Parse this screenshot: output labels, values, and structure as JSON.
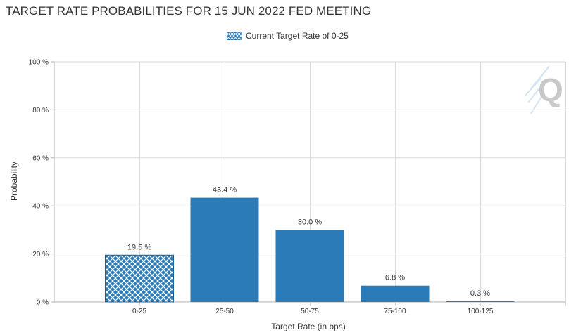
{
  "title": "TARGET RATE PROBABILITIES FOR 15 JUN 2022 FED MEETING",
  "legend": {
    "label": "Current Target Rate of 0-25"
  },
  "colors": {
    "bar": "#2b7bb9",
    "hatch_bg": "#2b7bb9",
    "hatch_line": "#ffffff",
    "grid": "#d9d9d9",
    "axis": "#b3b3b3"
  },
  "chart_data": {
    "type": "bar",
    "title": "TARGET RATE PROBABILITIES FOR 15 JUN 2022 FED MEETING",
    "xlabel": "Target Rate (in bps)",
    "ylabel": "Probability",
    "ylim": [
      0,
      100
    ],
    "yticks": [
      0,
      20,
      40,
      60,
      80,
      100
    ],
    "ytick_labels": [
      "0 %",
      "20 %",
      "40 %",
      "60 %",
      "80 %",
      "100 %"
    ],
    "grid": true,
    "legend_position": "top-center",
    "categories": [
      "0-25",
      "25-50",
      "50-75",
      "75-100",
      "100-125"
    ],
    "values": [
      19.5,
      43.4,
      30.0,
      6.8,
      0.3
    ],
    "value_labels": [
      "19.5 %",
      "43.4 %",
      "30.0 %",
      "6.8 %",
      "0.3 %"
    ],
    "highlighted_category": "0-25"
  },
  "watermark": {
    "icon": "q-logo-icon"
  }
}
